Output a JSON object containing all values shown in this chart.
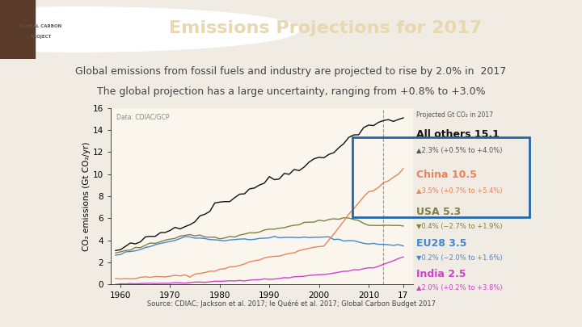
{
  "title": "Emissions Projections for 2017",
  "subtitle1": "Global emissions from fossil fuels and industry are projected to rise by 2.0% in  2017",
  "subtitle2": "The global projection has a large uncertainty, ranging from +0.8% to +3.0%",
  "source_text": "Source: CDIAC; Jackson et al. 2017; le Quéré et al. 2017; Global Carbon Budget 2017",
  "bg_color": "#f5f0e8",
  "header_bg": "#6b4c3b",
  "plot_bg": "#faf6ee",
  "logo_text": "GLOBAL CARBON\nPROJECT",
  "data_label": "Data: CDIAC/GCP",
  "legend_header": "Projected Gt CO₂ in 2017",
  "ylabel": "CO₂ emissions (Gt CO₂/yr)",
  "ylim": [
    0,
    16
  ],
  "yticks": [
    0,
    2,
    4,
    6,
    8,
    10,
    12,
    14,
    16
  ],
  "xlim": [
    1958,
    2019
  ],
  "xtick_labels": [
    "1960",
    "1970",
    "1980",
    "1990",
    "2000",
    "2010",
    "17"
  ],
  "xtick_positions": [
    1960,
    1970,
    1980,
    1990,
    2000,
    2010,
    2017
  ],
  "vline_x": 2013,
  "series": {
    "world": {
      "color": "#111111",
      "label": "All others 15.1",
      "sub_label": "▲2.3% (+0.5% to +4.0%)",
      "label_color": "#111111",
      "sub_color": "#555555"
    },
    "china": {
      "color": "#e8845a",
      "label": "China 10.5",
      "sub_label": "▲3.5% (+0.7% to +5.4%)",
      "label_color": "#e8845a",
      "sub_color": "#e8845a"
    },
    "usa": {
      "color": "#808040",
      "label": "USA 5.3",
      "sub_label": "▼0.4% (−2.7% to +1.9%)",
      "label_color": "#808040",
      "sub_color": "#808040"
    },
    "eu28": {
      "color": "#4488cc",
      "label": "EU28 3.5",
      "sub_label": "▼0.2% (−2.0% to +1.6%)",
      "label_color": "#4488cc",
      "sub_color": "#4488cc"
    },
    "india": {
      "color": "#cc44cc",
      "label": "India 2.5",
      "sub_label": "▲2.0% (+0.2% to +3.8%)",
      "label_color": "#cc44cc",
      "sub_color": "#cc44cc"
    }
  },
  "china_box_color": "#2266aa",
  "title_color": "#2266aa",
  "title_fontsize": 16,
  "sub_fontsize": 9,
  "source_color": "#444444",
  "source_link_color": "#2266aa"
}
